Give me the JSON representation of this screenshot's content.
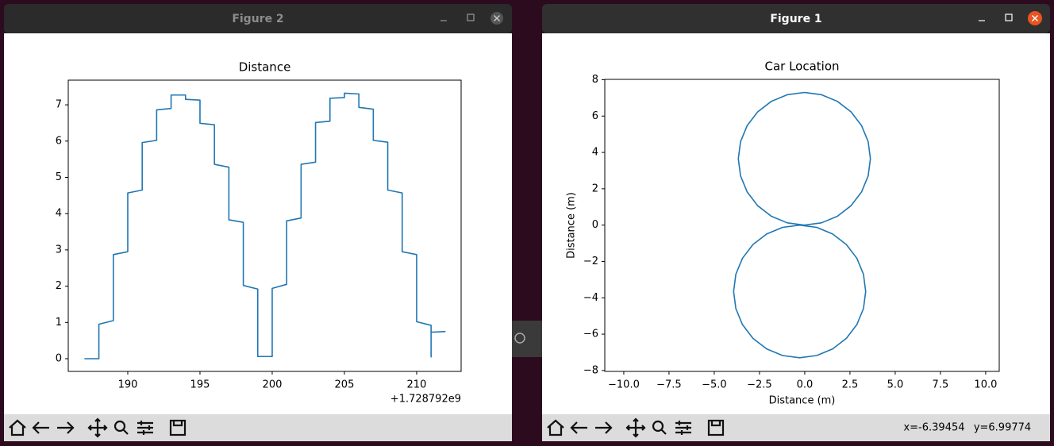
{
  "windows": [
    {
      "title": "Figure 2"
    },
    {
      "title": "Figure 1"
    }
  ],
  "status": {
    "x": "x=-6.39454",
    "y": "y=6.99774"
  },
  "chart_data": [
    {
      "type": "line",
      "title": "Distance",
      "x_offset_label": "+1.728792e9",
      "x": [
        187,
        188,
        188,
        189,
        189,
        190,
        190,
        191,
        191,
        192,
        192,
        193,
        193,
        194,
        194,
        195,
        195,
        196,
        196,
        197,
        197,
        198,
        198,
        199,
        199,
        200,
        200,
        201,
        201,
        202,
        202,
        203,
        203,
        204,
        204,
        205,
        205,
        206,
        206,
        207,
        207,
        208,
        208,
        209,
        209,
        210,
        210,
        211,
        211,
        211,
        212
      ],
      "series": [
        {
          "color": "#1f77b4",
          "values": [
            0.0,
            0.0,
            0.95,
            1.05,
            2.87,
            2.95,
            4.57,
            4.65,
            5.96,
            6.02,
            6.86,
            6.9,
            7.27,
            7.27,
            7.15,
            7.13,
            6.49,
            6.45,
            5.36,
            5.28,
            3.83,
            3.76,
            2.02,
            1.92,
            0.06,
            0.06,
            1.94,
            2.05,
            3.8,
            3.88,
            5.36,
            5.42,
            6.51,
            6.55,
            7.18,
            7.2,
            7.32,
            7.3,
            6.93,
            6.88,
            6.02,
            5.97,
            4.65,
            4.57,
            2.95,
            2.87,
            1.02,
            0.92,
            0.05,
            0.73,
            0.75
          ]
        }
      ],
      "xlim": [
        185.88,
        213.08
      ],
      "xticks": [
        190,
        195,
        200,
        205,
        210
      ],
      "ylim": [
        -0.35,
        7.68
      ],
      "yticks": [
        0,
        1,
        2,
        3,
        4,
        5,
        6,
        7
      ]
    },
    {
      "type": "line",
      "title": "Car Location",
      "xlabel": "Distance (m)",
      "ylabel": "Distance (m)",
      "x": [
        -0.02,
        0.925,
        1.805,
        2.561,
        3.141,
        3.506,
        3.63,
        3.506,
        3.141,
        2.561,
        1.805,
        0.925,
        -0.02,
        -0.965,
        -1.845,
        -2.601,
        -3.181,
        -3.546,
        -3.67,
        -3.546,
        -3.181,
        -2.601,
        -1.845,
        -0.965,
        -0.02,
        -0.28,
        0.665,
        1.545,
        2.301,
        2.881,
        3.246,
        3.37,
        3.246,
        2.881,
        2.301,
        1.545,
        0.665,
        -0.28,
        -1.225,
        -2.105,
        -2.861,
        -3.441,
        -3.806,
        -3.93,
        -3.806,
        -3.441,
        -2.861,
        -2.105,
        -1.225,
        -0.28
      ],
      "series": [
        {
          "color": "#1f77b4",
          "values": [
            0,
            0.124,
            0.489,
            1.069,
            1.825,
            2.705,
            3.65,
            4.595,
            5.475,
            6.231,
            6.811,
            7.176,
            7.3,
            7.176,
            6.811,
            6.231,
            5.475,
            4.595,
            3.65,
            2.705,
            1.825,
            1.069,
            0.489,
            0.124,
            0,
            0,
            -0.124,
            -0.489,
            -1.069,
            -1.825,
            -2.705,
            -3.65,
            -4.595,
            -5.475,
            -6.231,
            -6.811,
            -7.176,
            -7.3,
            -7.176,
            -6.811,
            -6.231,
            -5.475,
            -4.595,
            -3.65,
            -2.705,
            -1.825,
            -1.069,
            -0.489,
            -0.124,
            0
          ]
        }
      ],
      "xlim": [
        -11.05,
        10.75
      ],
      "xticks": [
        {
          "value": -10,
          "label": "−10.0"
        },
        {
          "value": -7.5,
          "label": "−7.5"
        },
        {
          "value": -5,
          "label": "−5.0"
        },
        {
          "value": -2.5,
          "label": "−2.5"
        },
        {
          "value": 0,
          "label": "0.0"
        },
        2.5,
        {
          "value": 5,
          "label": "5.0"
        },
        7.5,
        {
          "value": 10,
          "label": "10.0"
        }
      ],
      "ylim": [
        -8.05,
        8.02
      ],
      "yticks": [
        {
          "value": -8,
          "label": "−8"
        },
        {
          "value": -6,
          "label": "−6"
        },
        {
          "value": -4,
          "label": "−4"
        },
        {
          "value": -2,
          "label": "−2"
        },
        0,
        2,
        4,
        6,
        8
      ]
    }
  ]
}
